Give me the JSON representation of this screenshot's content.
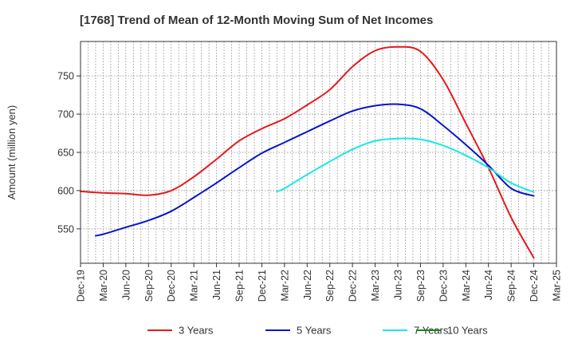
{
  "chart_data": {
    "type": "line",
    "title": "[1768]  Trend of Mean of 12-Month Moving Sum of Net Incomes",
    "xlabel": "",
    "ylabel": "Amount (million yen)",
    "x_ticks": [
      "Dec-19",
      "Mar-20",
      "Jun-20",
      "Sep-20",
      "Dec-20",
      "Mar-21",
      "Jun-21",
      "Sep-21",
      "Dec-21",
      "Mar-22",
      "Jun-22",
      "Sep-22",
      "Dec-22",
      "Mar-23",
      "Jun-23",
      "Sep-23",
      "Dec-23",
      "Mar-24",
      "Jun-24",
      "Sep-24",
      "Dec-24",
      "Mar-25"
    ],
    "y_ticks": [
      550,
      600,
      650,
      700,
      750
    ],
    "xlim": [
      "Dec-19",
      "Mar-25"
    ],
    "ylim": [
      505,
      795
    ],
    "grid": true,
    "legend_position": "bottom",
    "series": [
      {
        "name": "3 Years",
        "color": "#e31a1c",
        "points": [
          [
            "Dec-19",
            599
          ],
          [
            "Mar-20",
            597
          ],
          [
            "Jun-20",
            596
          ],
          [
            "Sep-20",
            594
          ],
          [
            "Dec-20",
            600
          ],
          [
            "Mar-21",
            618
          ],
          [
            "Jun-21",
            641
          ],
          [
            "Sep-21",
            665
          ],
          [
            "Dec-21",
            681
          ],
          [
            "Mar-22",
            694
          ],
          [
            "Jun-22",
            712
          ],
          [
            "Sep-22",
            732
          ],
          [
            "Dec-22",
            762
          ],
          [
            "Mar-23",
            783
          ],
          [
            "Jun-23",
            788
          ],
          [
            "Sep-23",
            782
          ],
          [
            "Dec-23",
            745
          ],
          [
            "Mar-24",
            688
          ],
          [
            "Jun-24",
            630
          ],
          [
            "Sep-24",
            565
          ],
          [
            "Dec-24",
            512
          ]
        ]
      },
      {
        "name": "5 Years",
        "color": "#0a14c8",
        "points": [
          [
            "Feb-20",
            541
          ],
          [
            "Mar-20",
            543
          ],
          [
            "Jun-20",
            552
          ],
          [
            "Sep-20",
            561
          ],
          [
            "Dec-20",
            573
          ],
          [
            "Mar-21",
            591
          ],
          [
            "Jun-21",
            610
          ],
          [
            "Sep-21",
            630
          ],
          [
            "Dec-21",
            649
          ],
          [
            "Mar-22",
            663
          ],
          [
            "Jun-22",
            677
          ],
          [
            "Sep-22",
            691
          ],
          [
            "Dec-22",
            704
          ],
          [
            "Mar-23",
            711
          ],
          [
            "Jun-23",
            713
          ],
          [
            "Sep-23",
            707
          ],
          [
            "Dec-23",
            685
          ],
          [
            "Mar-24",
            660
          ],
          [
            "Jun-24",
            633
          ],
          [
            "Sep-24",
            603
          ],
          [
            "Dec-24",
            593
          ]
        ]
      },
      {
        "name": "7 Years",
        "color": "#19e8e8",
        "points": [
          [
            "Feb-22",
            599
          ],
          [
            "Mar-22",
            603
          ],
          [
            "Jun-22",
            621
          ],
          [
            "Sep-22",
            638
          ],
          [
            "Dec-22",
            654
          ],
          [
            "Mar-23",
            665
          ],
          [
            "Jun-23",
            668
          ],
          [
            "Sep-23",
            667
          ],
          [
            "Dec-23",
            659
          ],
          [
            "Mar-24",
            646
          ],
          [
            "Jun-24",
            630
          ],
          [
            "Sep-24",
            610
          ],
          [
            "Dec-24",
            598
          ]
        ]
      },
      {
        "name": "10 Years",
        "color": "#1a8a1a",
        "points": []
      }
    ]
  }
}
